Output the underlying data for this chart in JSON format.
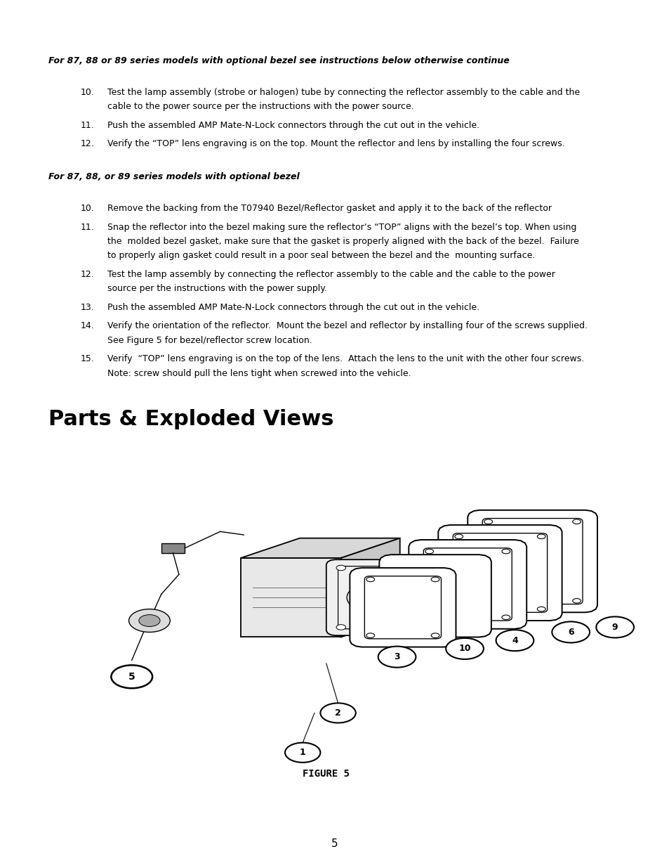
{
  "bg_color": "#ffffff",
  "text_color": "#000000",
  "title": "Parts & Exploded Views",
  "figure_label": "FIGURE 5",
  "page_number": "5",
  "header1": "For 87, 88 or 89 series models with optional bezel see instructions below otherwise continue",
  "section1": [
    {
      "num": "10.",
      "lines": [
        "Test the lamp assembly (strobe or halogen) tube by connecting the reflector assembly to the cable and the",
        "cable to the power source per the instructions with the power source."
      ]
    },
    {
      "num": "11.",
      "lines": [
        "Push the assembled AMP Mate-N-Lock connectors through the cut out in the vehicle."
      ]
    },
    {
      "num": "12.",
      "lines": [
        "Verify the “TOP” lens engraving is on the top. Mount the reflector and lens by installing the four screws."
      ]
    }
  ],
  "header2": "For 87, 88, or 89 series models with optional bezel",
  "section2": [
    {
      "num": "10.",
      "lines": [
        "Remove the backing from the T07940 Bezel/Reflector gasket and apply it to the back of the reflector"
      ]
    },
    {
      "num": "11.",
      "lines": [
        "Snap the reflector into the bezel making sure the reflector’s “TOP” aligns with the bezel’s top. When using",
        "the  molded bezel gasket, make sure that the gasket is properly aligned with the back of the bezel.  Failure",
        "to properly align gasket could result in a poor seal between the bezel and the  mounting surface."
      ]
    },
    {
      "num": "12.",
      "lines": [
        "Test the lamp assembly by connecting the reflector assembly to the cable and the cable to the power",
        "source per the instructions with the power supply."
      ]
    },
    {
      "num": "13.",
      "lines": [
        "Push the assembled AMP Mate-N-Lock connectors through the cut out in the vehicle."
      ]
    },
    {
      "num": "14.",
      "lines": [
        "Verify the orientation of the reflector.  Mount the bezel and reflector by installing four of the screws supplied.",
        "See Figure 5 for bezel/reflector screw location."
      ]
    },
    {
      "num": "15.",
      "lines": [
        "Verify  “TOP” lens engraving is on the top of the lens.  Attach the lens to the unit with the other four screws.",
        "Note: screw should pull the lens tight when screwed into the vehicle."
      ]
    }
  ],
  "fs_body": 9.0,
  "fs_title": 22,
  "fs_page": 11,
  "lh": 0.0165,
  "ml": 0.072,
  "num_indent": 0.048,
  "text_indent": 0.088
}
